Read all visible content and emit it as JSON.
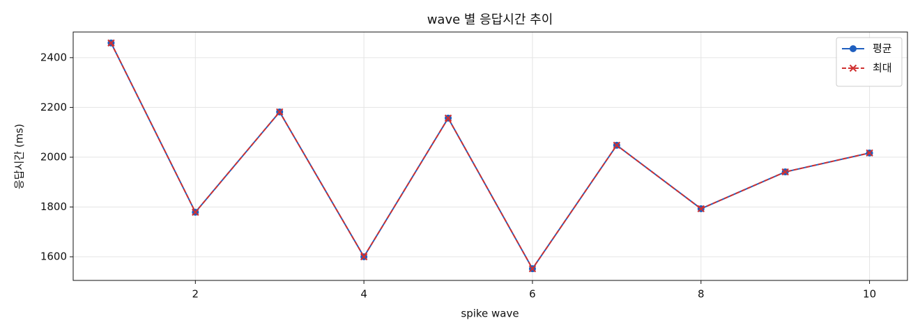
{
  "chart_data": {
    "type": "line",
    "title": "wave 별 응답시간 추이",
    "x_label": "spike wave",
    "y_label": "응답시간 (ms)",
    "x": [
      1,
      2,
      3,
      4,
      5,
      6,
      7,
      8,
      9,
      10
    ],
    "series": [
      {
        "name": "평균",
        "color": "#1f5fbf",
        "marker": "circle",
        "dashed": false,
        "values": [
          2459,
          1779,
          2182,
          1600,
          2157,
          1552,
          2048,
          1793,
          1941,
          2017
        ]
      },
      {
        "name": "최대",
        "color": "#d03030",
        "marker": "x",
        "dashed": true,
        "values": [
          2459,
          1779,
          2182,
          1600,
          2157,
          1552,
          2048,
          1793,
          1941,
          2017
        ]
      }
    ],
    "xlim": [
      0.55,
      10.45
    ],
    "ylim": [
      1505,
      2503
    ],
    "xticks": [
      2,
      4,
      6,
      8,
      10
    ],
    "yticks": [
      1600,
      1800,
      2000,
      2200,
      2400
    ],
    "grid": true,
    "legend": "upper right"
  }
}
